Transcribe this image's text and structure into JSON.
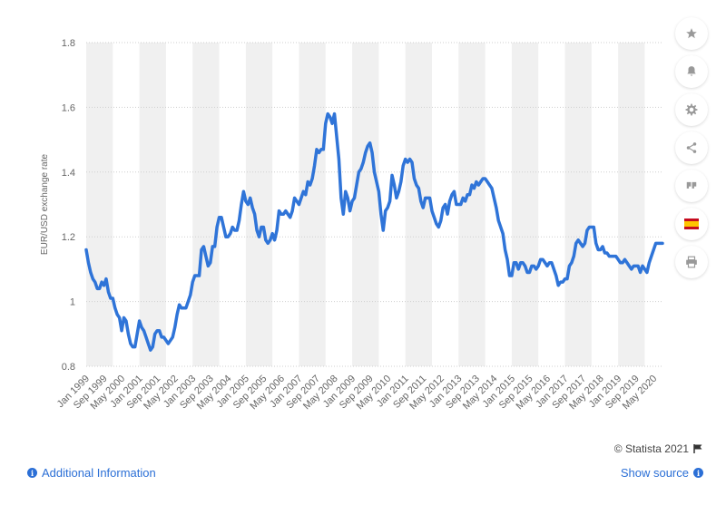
{
  "chart_data": {
    "type": "line",
    "ylabel": "EUR/USD exchange rate",
    "ylim": [
      0.8,
      1.8
    ],
    "y_ticks": [
      "0.8",
      "1",
      "1.2",
      "1.4",
      "1.6",
      "1.8"
    ],
    "x_ticks": [
      "Jan 1999",
      "Sep 1999",
      "May 2000",
      "Jan 2001",
      "Sep 2001",
      "May 2002",
      "Jan 2003",
      "Sep 2003",
      "May 2004",
      "Jan 2005",
      "Sep 2005",
      "May 2006",
      "Jan 2007",
      "Sep 2007",
      "May 2008",
      "Jan 2009",
      "Sep 2009",
      "May 2010",
      "Jan 2011",
      "Sep 2011",
      "May 2012",
      "Jan 2013",
      "Sep 2013",
      "May 2014",
      "Jan 2015",
      "Sep 2015",
      "May 2016",
      "Jan 2017",
      "Sep 2017",
      "May 2018",
      "Jan 2019",
      "Sep 2019",
      "May 2020"
    ],
    "grid": true,
    "line_color": "#2f74d8",
    "series": [
      {
        "x_start": "Jan 1999",
        "frequency": "monthly",
        "values": [
          1.16,
          1.12,
          1.09,
          1.07,
          1.06,
          1.04,
          1.04,
          1.06,
          1.05,
          1.07,
          1.03,
          1.01,
          1.01,
          0.98,
          0.96,
          0.95,
          0.91,
          0.95,
          0.94,
          0.9,
          0.87,
          0.86,
          0.86,
          0.9,
          0.94,
          0.92,
          0.91,
          0.89,
          0.87,
          0.85,
          0.86,
          0.9,
          0.91,
          0.91,
          0.89,
          0.89,
          0.88,
          0.87,
          0.88,
          0.89,
          0.92,
          0.96,
          0.99,
          0.98,
          0.98,
          0.98,
          1.0,
          1.02,
          1.06,
          1.08,
          1.08,
          1.08,
          1.16,
          1.17,
          1.14,
          1.11,
          1.12,
          1.17,
          1.17,
          1.23,
          1.26,
          1.26,
          1.23,
          1.2,
          1.2,
          1.21,
          1.23,
          1.22,
          1.22,
          1.25,
          1.3,
          1.34,
          1.31,
          1.3,
          1.32,
          1.29,
          1.27,
          1.22,
          1.2,
          1.23,
          1.23,
          1.19,
          1.18,
          1.19,
          1.21,
          1.19,
          1.22,
          1.28,
          1.27,
          1.27,
          1.28,
          1.27,
          1.26,
          1.28,
          1.32,
          1.31,
          1.3,
          1.32,
          1.34,
          1.33,
          1.37,
          1.36,
          1.38,
          1.42,
          1.47,
          1.46,
          1.47,
          1.47,
          1.55,
          1.58,
          1.57,
          1.55,
          1.58,
          1.51,
          1.44,
          1.32,
          1.27,
          1.34,
          1.32,
          1.28,
          1.31,
          1.32,
          1.36,
          1.4,
          1.41,
          1.43,
          1.46,
          1.48,
          1.49,
          1.46,
          1.4,
          1.37,
          1.34,
          1.27,
          1.22,
          1.28,
          1.29,
          1.31,
          1.39,
          1.36,
          1.32,
          1.34,
          1.37,
          1.42,
          1.44,
          1.43,
          1.44,
          1.43,
          1.38,
          1.36,
          1.35,
          1.31,
          1.29,
          1.32,
          1.32,
          1.32,
          1.28,
          1.26,
          1.24,
          1.23,
          1.25,
          1.29,
          1.3,
          1.27,
          1.31,
          1.33,
          1.34,
          1.3,
          1.3,
          1.3,
          1.32,
          1.31,
          1.33,
          1.33,
          1.36,
          1.35,
          1.37,
          1.36,
          1.37,
          1.38,
          1.38,
          1.37,
          1.36,
          1.35,
          1.32,
          1.29,
          1.25,
          1.23,
          1.21,
          1.16,
          1.13,
          1.08,
          1.08,
          1.12,
          1.12,
          1.1,
          1.12,
          1.12,
          1.11,
          1.09,
          1.09,
          1.11,
          1.11,
          1.1,
          1.11,
          1.13,
          1.13,
          1.12,
          1.11,
          1.12,
          1.12,
          1.1,
          1.08,
          1.05,
          1.06,
          1.06,
          1.07,
          1.07,
          1.11,
          1.12,
          1.14,
          1.18,
          1.19,
          1.18,
          1.17,
          1.18,
          1.22,
          1.23,
          1.23,
          1.23,
          1.18,
          1.16,
          1.16,
          1.17,
          1.15,
          1.15,
          1.14,
          1.14,
          1.14,
          1.14,
          1.13,
          1.12,
          1.12,
          1.13,
          1.12,
          1.11,
          1.1,
          1.11,
          1.11,
          1.11,
          1.09,
          1.11,
          1.1,
          1.09,
          1.12,
          1.14,
          1.16,
          1.18,
          1.18,
          1.18,
          1.18
        ]
      }
    ]
  },
  "toolbar": {
    "icons": [
      "star-icon",
      "bell-icon",
      "gear-icon",
      "share-icon",
      "quote-icon",
      "spain-flag-icon",
      "print-icon"
    ]
  },
  "footer": {
    "credit": "© Statista 2021",
    "additional_info": "Additional Information",
    "show_source": "Show source"
  }
}
